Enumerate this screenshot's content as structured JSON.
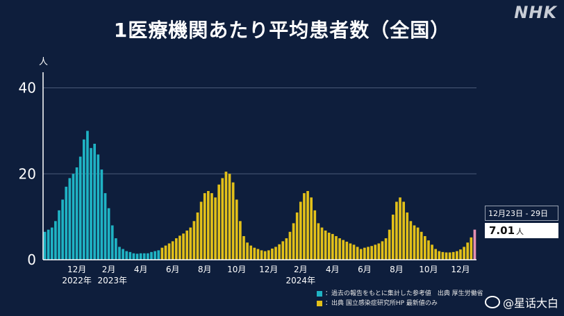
{
  "header": {
    "title": "1医療機関あたり平均患者数（全国）",
    "brand": "NHK"
  },
  "watermark": "@星话大白",
  "legend": [
    {
      "color": "#1fb3c4",
      "text": "：過去の報告をもとに集計した参考値　出典 厚生労働省"
    },
    {
      "color": "#e2c019",
      "text": "：出典 国立感染症研究所HP 最新値のみ"
    }
  ],
  "callout": {
    "date": "12月23日 - 29日",
    "value": "7.01",
    "unit": "人"
  },
  "chart_data": {
    "type": "bar",
    "title": "1医療機関あたり平均患者数（全国）",
    "ylabel": "人",
    "ylim": [
      0,
      43
    ],
    "yticks": [
      0,
      20,
      40
    ],
    "grid": true,
    "xticks": [
      {
        "label": "12月",
        "index": 9
      },
      {
        "label": "2月",
        "index": 18
      },
      {
        "label": "4月",
        "index": 27
      },
      {
        "label": "6月",
        "index": 36
      },
      {
        "label": "8月",
        "index": 45
      },
      {
        "label": "10月",
        "index": 54
      },
      {
        "label": "12月",
        "index": 63
      },
      {
        "label": "2月",
        "index": 72
      },
      {
        "label": "4月",
        "index": 81
      },
      {
        "label": "6月",
        "index": 90
      },
      {
        "label": "8月",
        "index": 99
      },
      {
        "label": "10月",
        "index": 108
      },
      {
        "label": "12月",
        "index": 117
      }
    ],
    "year_labels": [
      {
        "label": "2022年",
        "index": 9
      },
      {
        "label": "2023年",
        "index": 19
      },
      {
        "label": "2024年",
        "index": 72
      }
    ],
    "series": [
      {
        "color": "#1fb3c4",
        "values": [
          6.5,
          7.0,
          7.5,
          9.0,
          11.5,
          14.0,
          17.0,
          19.0,
          20.0,
          21.5,
          24.0,
          28.0,
          30.0,
          26.0,
          27.0,
          24.5,
          21.0,
          15.5,
          12.0,
          8.0,
          5.0,
          3.0,
          2.5,
          2.0,
          1.8,
          1.5,
          1.4,
          1.5,
          1.5,
          1.5,
          1.8,
          2.0,
          2.2
        ]
      },
      {
        "color": "#e2c019",
        "values": [
          2.8,
          3.3,
          3.8,
          4.3,
          5.0,
          5.6,
          6.1,
          6.8,
          7.5,
          9.0,
          11.0,
          13.5,
          15.5,
          16.0,
          15.5,
          14.5,
          17.5,
          19.0,
          20.5,
          20.0,
          18.0,
          14.0,
          9.0,
          5.5,
          4.0,
          3.3,
          2.8,
          2.5,
          2.2,
          2.0,
          2.2,
          2.6,
          3.0,
          3.6,
          4.3,
          5.0,
          6.5,
          8.5,
          11.0,
          13.5,
          15.5,
          16.0,
          14.5,
          11.5,
          8.5,
          7.5,
          6.8,
          6.3,
          6.0,
          5.5,
          5.0,
          4.6,
          4.2,
          3.8,
          3.5,
          3.0,
          2.5,
          2.8,
          3.0,
          3.2,
          3.5,
          3.8,
          4.3,
          5.0,
          7.0,
          10.5,
          13.5,
          14.5,
          13.5,
          11.0,
          9.0,
          8.0,
          7.5,
          6.5,
          5.5,
          4.5,
          3.5,
          2.5,
          2.0,
          1.8,
          1.7,
          1.7,
          1.8,
          2.0,
          2.4,
          3.0,
          4.0,
          5.2,
          7.01
        ]
      }
    ]
  }
}
